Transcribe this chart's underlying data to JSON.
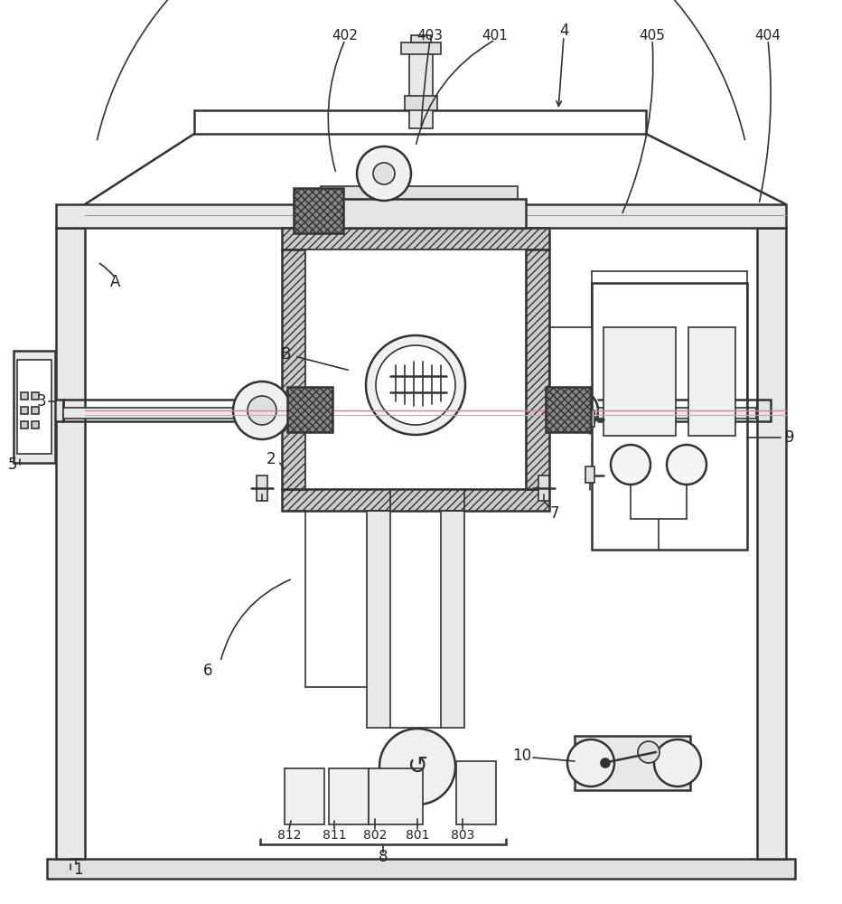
{
  "bg_color": "#ffffff",
  "lc": "#333333",
  "lc_light": "#999999",
  "fc_gray": "#e8e8e8",
  "fc_light": "#f5f5f5",
  "pink": "#cc8888",
  "green": "#88cc88",
  "figw": 9.32,
  "figh": 10.0,
  "dpi": 100
}
